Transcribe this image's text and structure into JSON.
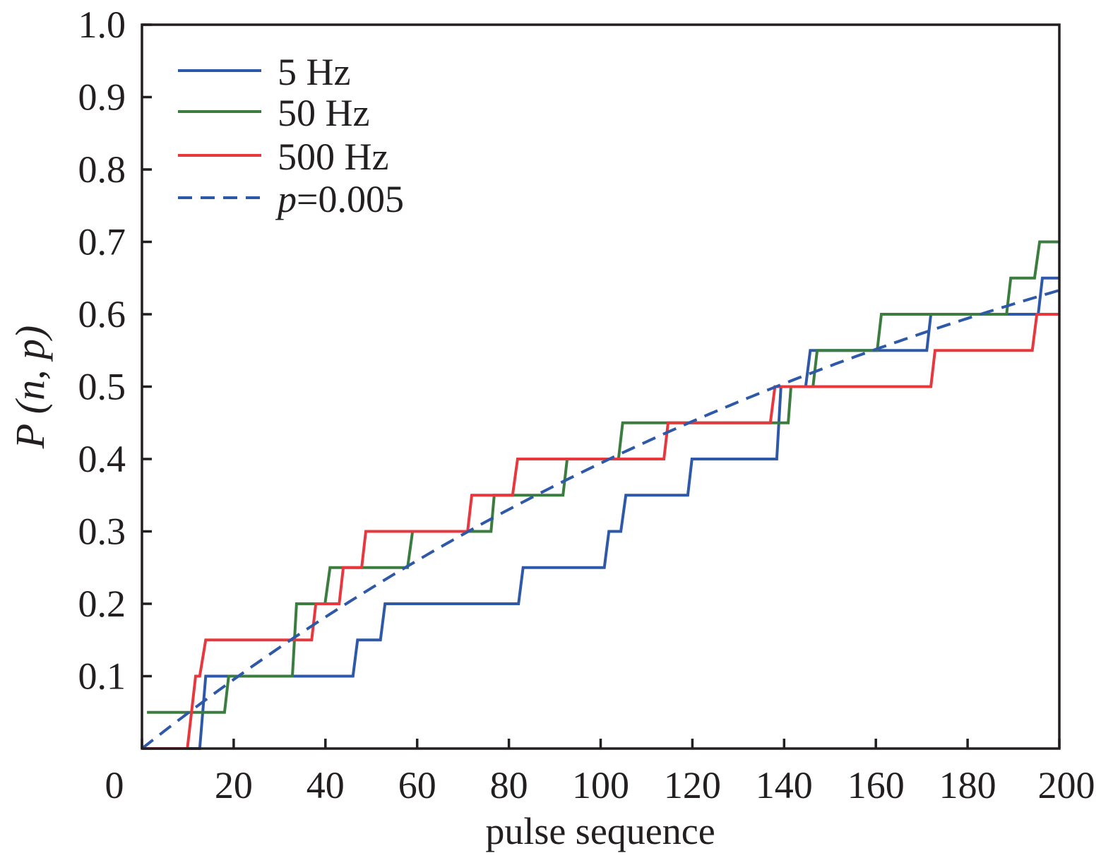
{
  "chart_data": {
    "type": "line",
    "title": "",
    "xlabel": "pulse sequence",
    "ylabel": "P (n, p)",
    "xlim": [
      0,
      200
    ],
    "ylim": [
      0,
      1.0
    ],
    "xticks": [
      0,
      20,
      40,
      60,
      80,
      100,
      120,
      140,
      160,
      180,
      200
    ],
    "xtick_labels": [
      "0",
      "20",
      "40",
      "60",
      "80",
      "100",
      "120",
      "140",
      "160",
      "180",
      "200"
    ],
    "yticks": [
      0.1,
      0.2,
      0.3,
      0.4,
      0.5,
      0.6,
      0.7,
      0.8,
      0.9,
      1.0
    ],
    "ytick_labels": [
      "0.1",
      "0.2",
      "0.3",
      "0.4",
      "0.5",
      "0.6",
      "0.7",
      "0.8",
      "0.9",
      "1.0"
    ],
    "grid": false,
    "legend_placement": "top-left",
    "series": [
      {
        "name": "5 Hz",
        "color": "#2e58a8",
        "style": "solid",
        "points": [
          [
            0,
            0
          ],
          [
            12.6,
            0
          ],
          [
            13.9,
            0.1
          ],
          [
            46.0,
            0.1
          ],
          [
            47.0,
            0.15
          ],
          [
            52.0,
            0.15
          ],
          [
            53.0,
            0.2
          ],
          [
            82.1,
            0.2
          ],
          [
            83.1,
            0.25
          ],
          [
            100.8,
            0.25
          ],
          [
            101.8,
            0.3
          ],
          [
            104.4,
            0.3
          ],
          [
            105.5,
            0.35
          ],
          [
            119.0,
            0.35
          ],
          [
            119.9,
            0.4
          ],
          [
            138.4,
            0.4
          ],
          [
            139.3,
            0.5
          ],
          [
            144.7,
            0.5
          ],
          [
            145.7,
            0.55
          ],
          [
            171.1,
            0.55
          ],
          [
            172.0,
            0.6
          ],
          [
            195.4,
            0.6
          ],
          [
            196.3,
            0.65
          ],
          [
            200,
            0.65
          ]
        ]
      },
      {
        "name": "50 Hz",
        "color": "#3a7d3e",
        "style": "solid",
        "points": [
          [
            1.1,
            0.05
          ],
          [
            18.0,
            0.05
          ],
          [
            18.9,
            0.1
          ],
          [
            32.8,
            0.1
          ],
          [
            33.7,
            0.2
          ],
          [
            39.9,
            0.2
          ],
          [
            41.0,
            0.25
          ],
          [
            57.9,
            0.25
          ],
          [
            59.0,
            0.3
          ],
          [
            76.1,
            0.3
          ],
          [
            76.8,
            0.35
          ],
          [
            91.8,
            0.35
          ],
          [
            92.7,
            0.4
          ],
          [
            103.9,
            0.4
          ],
          [
            104.8,
            0.45
          ],
          [
            140.9,
            0.45
          ],
          [
            141.5,
            0.5
          ],
          [
            146.3,
            0.5
          ],
          [
            147.2,
            0.55
          ],
          [
            160.3,
            0.55
          ],
          [
            161.2,
            0.6
          ],
          [
            188.5,
            0.6
          ],
          [
            189.4,
            0.65
          ],
          [
            194.6,
            0.65
          ],
          [
            195.7,
            0.7
          ],
          [
            200,
            0.7
          ]
        ]
      },
      {
        "name": "500 Hz",
        "color": "#e8383d",
        "style": "solid",
        "points": [
          [
            0,
            0
          ],
          [
            9.9,
            0
          ],
          [
            11.7,
            0.1
          ],
          [
            12.6,
            0.1
          ],
          [
            13.9,
            0.15
          ],
          [
            37.0,
            0.15
          ],
          [
            37.9,
            0.2
          ],
          [
            43.0,
            0.2
          ],
          [
            43.9,
            0.25
          ],
          [
            47.9,
            0.25
          ],
          [
            48.8,
            0.3
          ],
          [
            71.0,
            0.3
          ],
          [
            71.9,
            0.35
          ],
          [
            80.8,
            0.35
          ],
          [
            81.9,
            0.4
          ],
          [
            113.8,
            0.4
          ],
          [
            114.7,
            0.45
          ],
          [
            137.0,
            0.45
          ],
          [
            138.0,
            0.5
          ],
          [
            172.0,
            0.5
          ],
          [
            172.9,
            0.55
          ],
          [
            194.1,
            0.55
          ],
          [
            195.1,
            0.6
          ],
          [
            200,
            0.6
          ]
        ]
      },
      {
        "name": "p=0.005",
        "color": "#2e58a8",
        "style": "dashed",
        "formula": "1-(1-p)^n",
        "p": 0.005
      }
    ],
    "legend": {
      "label_prefix_italic": "p",
      "label_suffix": "=0.005"
    }
  }
}
